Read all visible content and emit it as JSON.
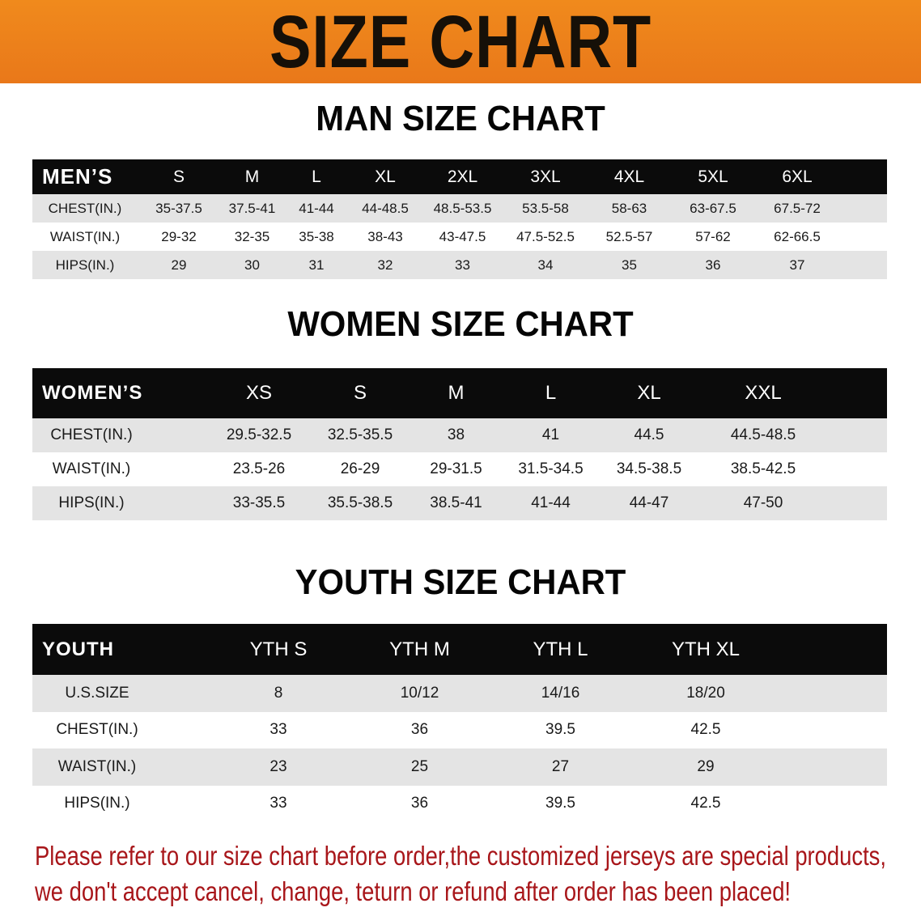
{
  "banner": {
    "title": "SIZE CHART",
    "color": "#ed801b"
  },
  "men": {
    "title": "MAN SIZE CHART",
    "header_label": "MEN’S",
    "sizes": [
      "S",
      "M",
      "L",
      "XL",
      "2XL",
      "3XL",
      "4XL",
      "5XL",
      "6XL"
    ],
    "rows": [
      {
        "label": "CHEST(IN.)",
        "values": [
          "35-37.5",
          "37.5-41",
          "41-44",
          "44-48.5",
          "48.5-53.5",
          "53.5-58",
          "58-63",
          "63-67.5",
          "67.5-72"
        ]
      },
      {
        "label": "WAIST(IN.)",
        "values": [
          "29-32",
          "32-35",
          "35-38",
          "38-43",
          "43-47.5",
          "47.5-52.5",
          "52.5-57",
          "57-62",
          "62-66.5"
        ]
      },
      {
        "label": "HIPS(IN.)",
        "values": [
          "29",
          "30",
          "31",
          "32",
          "33",
          "34",
          "35",
          "36",
          "37"
        ]
      }
    ]
  },
  "women": {
    "title": "WOMEN SIZE CHART",
    "header_label": "WOMEN’S",
    "sizes": [
      "XS",
      "S",
      "M",
      "L",
      "XL",
      "XXL"
    ],
    "rows": [
      {
        "label": "CHEST(IN.)",
        "values": [
          "29.5-32.5",
          "32.5-35.5",
          "38",
          "41",
          "44.5",
          "44.5-48.5"
        ]
      },
      {
        "label": "WAIST(IN.)",
        "values": [
          "23.5-26",
          "26-29",
          "29-31.5",
          "31.5-34.5",
          "34.5-38.5",
          "38.5-42.5"
        ]
      },
      {
        "label": "HIPS(IN.)",
        "values": [
          "33-35.5",
          "35.5-38.5",
          "38.5-41",
          "41-44",
          "44-47",
          "47-50"
        ]
      }
    ]
  },
  "youth": {
    "title": "YOUTH SIZE CHART",
    "header_label": "YOUTH",
    "sizes": [
      "YTH S",
      "YTH M",
      "YTH L",
      "YTH XL"
    ],
    "rows": [
      {
        "label": "U.S.SIZE",
        "values": [
          "8",
          "10/12",
          "14/16",
          "18/20"
        ]
      },
      {
        "label": "CHEST(IN.)",
        "values": [
          "33",
          "36",
          "39.5",
          "42.5"
        ]
      },
      {
        "label": "WAIST(IN.)",
        "values": [
          "23",
          "25",
          "27",
          "29"
        ]
      },
      {
        "label": "HIPS(IN.)",
        "values": [
          "33",
          "36",
          "39.5",
          "42.5"
        ]
      }
    ]
  },
  "note": {
    "line1": "Please refer to our size chart before order,the customized jerseys are special products,",
    "line2": "we don't accept cancel, change, teturn or refund after order has been placed!",
    "color": "#a8161a"
  }
}
